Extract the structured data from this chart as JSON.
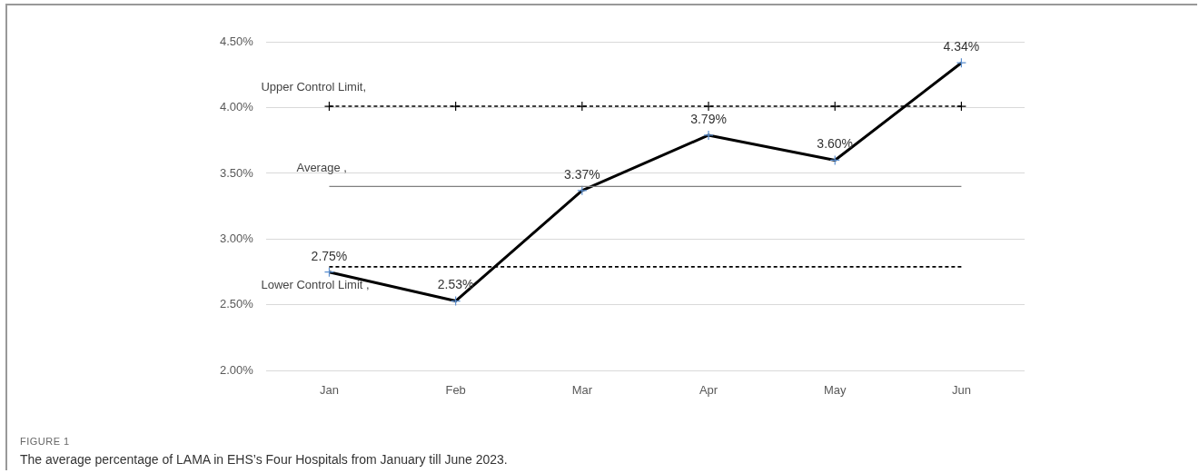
{
  "chart_data": {
    "type": "line",
    "categories": [
      "Jan",
      "Feb",
      "Mar",
      "Apr",
      "May",
      "Jun"
    ],
    "series": [
      {
        "color": "#000000",
        "values": [
          2.75,
          2.53,
          3.37,
          3.79,
          3.6,
          4.34
        ],
        "marker": "cross",
        "value_labels": [
          "2.75%",
          "2.53%",
          "3.37%",
          "3.79%",
          "3.60%",
          "4.34%"
        ]
      },
      {
        "name": "Upper Control Limit,",
        "color": "#000000",
        "values": [
          4.01,
          4.01,
          4.01,
          4.01,
          4.01,
          4.01
        ],
        "line_style": "dashed",
        "marker": "cross"
      },
      {
        "name": "Average ,",
        "color": "#808080",
        "values": [
          3.4,
          3.4,
          3.4,
          3.4,
          3.4,
          3.4
        ],
        "line_style": "solid",
        "marker": "none"
      },
      {
        "name": "Lower Control Limit ,",
        "color": "#000000",
        "values": [
          2.79,
          2.79,
          2.79,
          2.79,
          2.79,
          2.79
        ],
        "line_style": "dashed",
        "marker": "none"
      }
    ],
    "ylim": [
      2.0,
      4.5
    ],
    "yticks": [
      {
        "value": 2.0,
        "label": "2.00%"
      },
      {
        "value": 2.5,
        "label": "2.50%"
      },
      {
        "value": 3.0,
        "label": "3.00%"
      },
      {
        "value": 3.5,
        "label": "3.50%"
      },
      {
        "value": 4.0,
        "label": "4.00%"
      },
      {
        "value": 4.5,
        "label": "4.50%"
      }
    ],
    "grid": "y",
    "legend": false,
    "annotations": [
      "FIGURE 1",
      "The average percentage of LAMA in EHS’s Four Hospitals from January till June 2023."
    ]
  }
}
